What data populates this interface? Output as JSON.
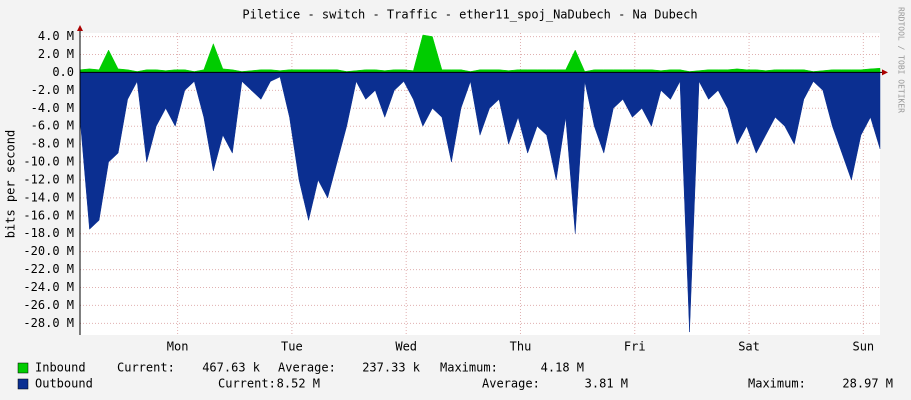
{
  "chart_data": {
    "type": "area",
    "title": "Piletice - switch - Traffic - ether11_spoj_NaDubech - Na Dubech",
    "y_label": "bits per second",
    "watermark": "RRDTOOL / TOBI OETIKER",
    "x": [
      0,
      2,
      4,
      6,
      8,
      10,
      12,
      14,
      16,
      18,
      20,
      22,
      24,
      26,
      28,
      30,
      32,
      34,
      36,
      38,
      40,
      42,
      44,
      46,
      48,
      50,
      52,
      54,
      56,
      58,
      60,
      62,
      64,
      66,
      68,
      70,
      72,
      74,
      76,
      78,
      80,
      82,
      84,
      86,
      88,
      90,
      92,
      94,
      96,
      98,
      100,
      102,
      104,
      106,
      108,
      110,
      112,
      114,
      116,
      118,
      120,
      122,
      124,
      126,
      128,
      130,
      132,
      134,
      136,
      138,
      140,
      142,
      144,
      146,
      148,
      150,
      152,
      154,
      156,
      158,
      160,
      162,
      164,
      166,
      168
    ],
    "xlim": [
      0,
      168
    ],
    "xticks": [
      {
        "value": 20.5,
        "label": "Mon"
      },
      {
        "value": 44.5,
        "label": "Tue"
      },
      {
        "value": 68.5,
        "label": "Wed"
      },
      {
        "value": 92.5,
        "label": "Thu"
      },
      {
        "value": 116.5,
        "label": "Fri"
      },
      {
        "value": 140.5,
        "label": "Sat"
      },
      {
        "value": 164.5,
        "label": "Sun"
      }
    ],
    "ylim": [
      -29.3,
      4.4
    ],
    "yticks": [
      {
        "value": 4,
        "label": "4.0 M"
      },
      {
        "value": 2,
        "label": "2.0 M"
      },
      {
        "value": 0,
        "label": "0.0"
      },
      {
        "value": -2,
        "label": "-2.0 M"
      },
      {
        "value": -4,
        "label": "-4.0 M"
      },
      {
        "value": -6,
        "label": "-6.0 M"
      },
      {
        "value": -8,
        "label": "-8.0 M"
      },
      {
        "value": -10,
        "label": "-10.0 M"
      },
      {
        "value": -12,
        "label": "-12.0 M"
      },
      {
        "value": -14,
        "label": "-14.0 M"
      },
      {
        "value": -16,
        "label": "-16.0 M"
      },
      {
        "value": -18,
        "label": "-18.0 M"
      },
      {
        "value": -20,
        "label": "-20.0 M"
      },
      {
        "value": -22,
        "label": "-22.0 M"
      },
      {
        "value": -24,
        "label": "-24.0 M"
      },
      {
        "value": -26,
        "label": "-26.0 M"
      },
      {
        "value": -28,
        "label": "-28.0 M"
      }
    ],
    "grid": true,
    "series": [
      {
        "name": "Inbound",
        "color": "#00cc00",
        "values": [
          0.3,
          0.4,
          0.3,
          2.5,
          0.4,
          0.3,
          0.1,
          0.3,
          0.3,
          0.2,
          0.3,
          0.3,
          0.1,
          0.3,
          3.2,
          0.4,
          0.3,
          0.1,
          0.2,
          0.3,
          0.3,
          0.2,
          0.3,
          0.3,
          0.3,
          0.3,
          0.3,
          0.3,
          0.1,
          0.2,
          0.3,
          0.3,
          0.2,
          0.3,
          0.3,
          0.2,
          4.18,
          4.0,
          0.3,
          0.3,
          0.3,
          0.1,
          0.3,
          0.3,
          0.3,
          0.2,
          0.3,
          0.3,
          0.3,
          0.3,
          0.3,
          0.3,
          2.5,
          0.1,
          0.3,
          0.3,
          0.3,
          0.3,
          0.3,
          0.3,
          0.3,
          0.2,
          0.3,
          0.3,
          0.1,
          0.2,
          0.3,
          0.3,
          0.3,
          0.4,
          0.3,
          0.3,
          0.2,
          0.3,
          0.3,
          0.3,
          0.3,
          0.1,
          0.2,
          0.3,
          0.3,
          0.3,
          0.3,
          0.4,
          0.47
        ],
        "stats": [
          {
            "label": "Current:",
            "value": "467.63 k"
          },
          {
            "label": "Average:",
            "value": "237.33 k"
          },
          {
            "label": "Maximum:",
            "value": "4.18 M"
          }
        ]
      },
      {
        "name": "Outbound",
        "color": "#0b2f91",
        "values": [
          -5,
          -17.5,
          -16.5,
          -10,
          -9,
          -3,
          -1,
          -10,
          -6,
          -4,
          -6,
          -2,
          -1,
          -5,
          -11,
          -7,
          -9,
          -1,
          -2,
          -3,
          -1,
          -0.5,
          -5,
          -12,
          -16.5,
          -12,
          -14,
          -10,
          -6,
          -1,
          -3,
          -2,
          -5,
          -2,
          -1,
          -3,
          -6,
          -4,
          -5,
          -10,
          -4,
          -1,
          -7,
          -4,
          -3,
          -8,
          -5,
          -9,
          -6,
          -7,
          -12,
          -5,
          -18,
          -1,
          -6,
          -9,
          -4,
          -3,
          -5,
          -4,
          -6,
          -2,
          -3,
          -1,
          -28.97,
          -1,
          -3,
          -2,
          -4,
          -8,
          -6,
          -9,
          -7,
          -5,
          -6,
          -8,
          -3,
          -1,
          -2,
          -6,
          -9,
          -12,
          -7,
          -5,
          -8.52
        ],
        "stats": [
          {
            "label": "Current:",
            "value": "8.52 M"
          },
          {
            "label": "Average:",
            "value": "3.81 M"
          },
          {
            "label": "Maximum:",
            "value": "28.97 M"
          }
        ]
      }
    ]
  }
}
